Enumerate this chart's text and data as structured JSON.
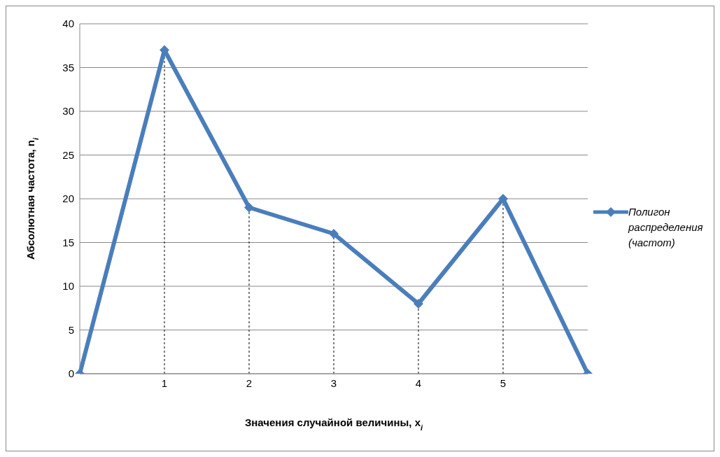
{
  "chart_data": {
    "type": "line",
    "xlabel": "Значения случайной величины, x$_{i}$",
    "ylabel": "Абсолютная частота, n$_{i}$",
    "categories": [
      null,
      "1",
      "2",
      "3",
      "4",
      "5",
      null
    ],
    "series": [
      {
        "name": "Полигон распределения (частот)",
        "color": "#4a7ebb",
        "values": [
          0,
          37,
          19,
          16,
          8,
          20,
          0
        ],
        "errors": [
          null,
          [
            0,
            37
          ],
          [
            0,
            19
          ],
          [
            0,
            16
          ],
          [
            0,
            8
          ],
          [
            0,
            20
          ],
          null
        ]
      }
    ],
    "ylim": [
      0,
      40
    ],
    "yticks": [
      0,
      5,
      10,
      15,
      20,
      25,
      30,
      35,
      40
    ],
    "grid": "y",
    "legend": "right",
    "marker": "diamond",
    "line_style": "solid"
  }
}
